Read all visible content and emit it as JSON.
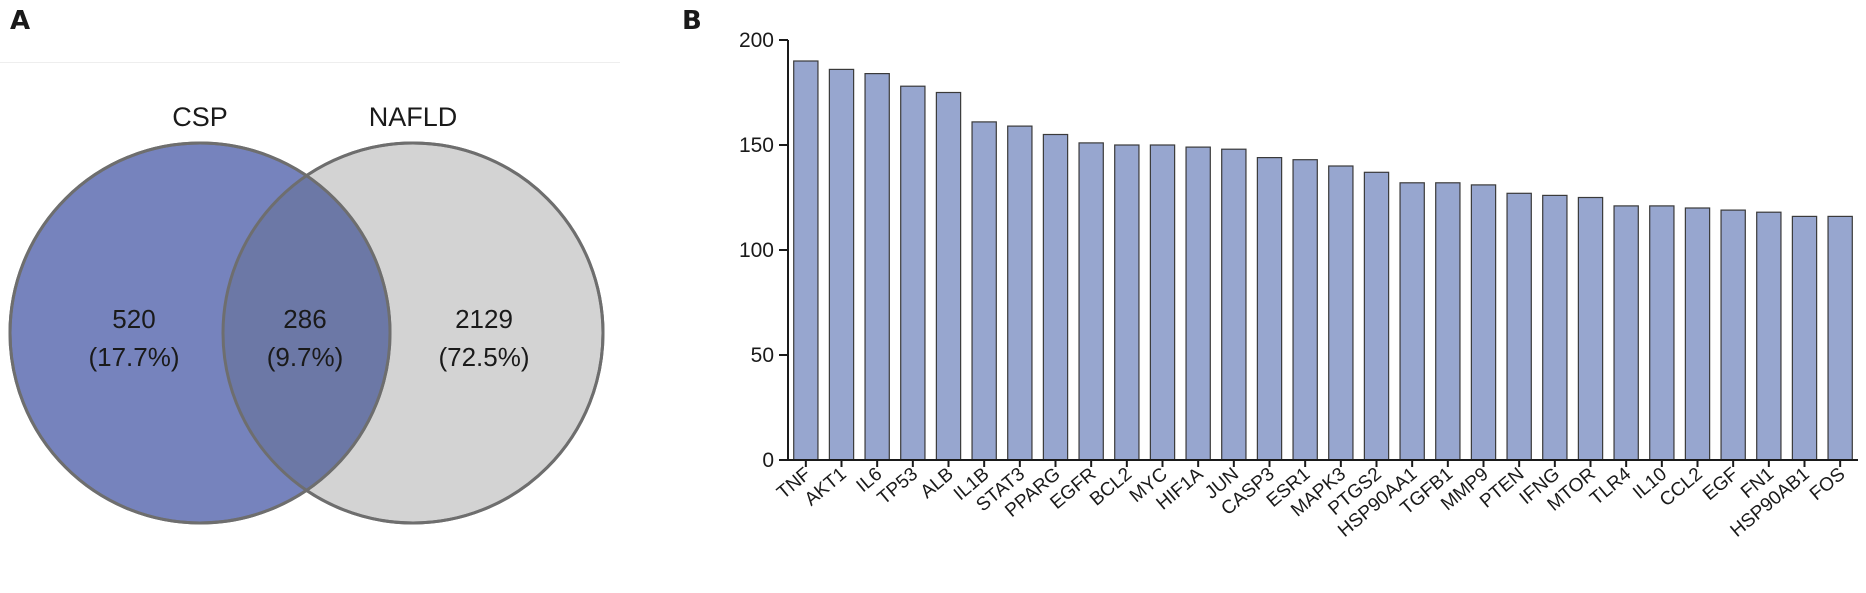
{
  "panels": {
    "a": "A",
    "b": "B"
  },
  "venn": {
    "sets": [
      {
        "name": "CSP",
        "color": "#7683bd"
      },
      {
        "name": "NAFLD",
        "color": "#d3d3d3"
      }
    ],
    "overlap_color": "#6c78a6",
    "regions": [
      {
        "count": "520",
        "percent": "(17.7%)"
      },
      {
        "count": "286",
        "percent": "(9.7%)"
      },
      {
        "count": "2129",
        "percent": "(72.5%)"
      }
    ]
  },
  "chart_data": [
    {
      "type": "venn",
      "sets": [
        "CSP",
        "NAFLD"
      ],
      "values": [
        520,
        286,
        2129
      ],
      "percent_labels": [
        "(17.7%)",
        "(9.7%)",
        "(72.5%)"
      ]
    },
    {
      "type": "bar",
      "categories": [
        "TNF",
        "AKT1",
        "IL6",
        "TP53",
        "ALB",
        "IL1B",
        "STAT3",
        "PPARG",
        "EGFR",
        "BCL2",
        "MYC",
        "HIF1A",
        "JUN",
        "CASP3",
        "ESR1",
        "MAPK3",
        "PTGS2",
        "HSP90AA1",
        "TGFB1",
        "MMP9",
        "PTEN",
        "IFNG",
        "MTOR",
        "TLR4",
        "IL10",
        "CCL2",
        "EGF",
        "FN1",
        "HSP90AB1",
        "FOS"
      ],
      "values": [
        190,
        186,
        184,
        178,
        175,
        161,
        159,
        155,
        151,
        150,
        150,
        149,
        148,
        144,
        143,
        140,
        137,
        132,
        132,
        131,
        127,
        126,
        125,
        121,
        121,
        120,
        119,
        118,
        116,
        116
      ],
      "yticks": [
        0,
        50,
        100,
        150,
        200
      ],
      "ylim": [
        0,
        200
      ],
      "grid": false,
      "bar_color": "#97a6cf",
      "xlabel": "",
      "ylabel": "",
      "title": ""
    }
  ]
}
